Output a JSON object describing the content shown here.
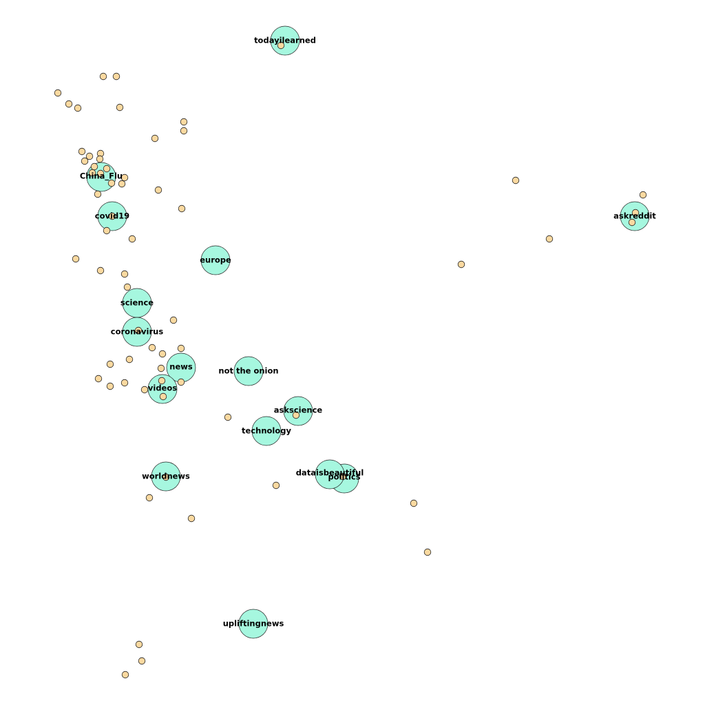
{
  "graph": {
    "colors": {
      "hub_fill": "#a6f7df",
      "leaf_fill": "#fbd9a0",
      "stroke": "#222222"
    },
    "hubs": [
      {
        "id": "todayilearned",
        "label": "todayilearned"
      },
      {
        "id": "china-flu",
        "label": "China_Flu"
      },
      {
        "id": "covid19",
        "label": "covid19"
      },
      {
        "id": "askreddit",
        "label": "askreddit"
      },
      {
        "id": "europe",
        "label": "europe"
      },
      {
        "id": "science",
        "label": "science"
      },
      {
        "id": "coronavirus",
        "label": "coronavirus"
      },
      {
        "id": "news",
        "label": "news"
      },
      {
        "id": "not-the-onion",
        "label": "not the onion"
      },
      {
        "id": "videos",
        "label": "videos"
      },
      {
        "id": "askscience",
        "label": "askscience"
      },
      {
        "id": "technology",
        "label": "technology"
      },
      {
        "id": "worldnews",
        "label": "worldnews"
      },
      {
        "id": "politics",
        "label": "politics"
      },
      {
        "id": "dataisbeautiful",
        "label": "dataisbeautiful"
      },
      {
        "id": "upliftingnews",
        "label": "upliftingnews"
      }
    ]
  }
}
